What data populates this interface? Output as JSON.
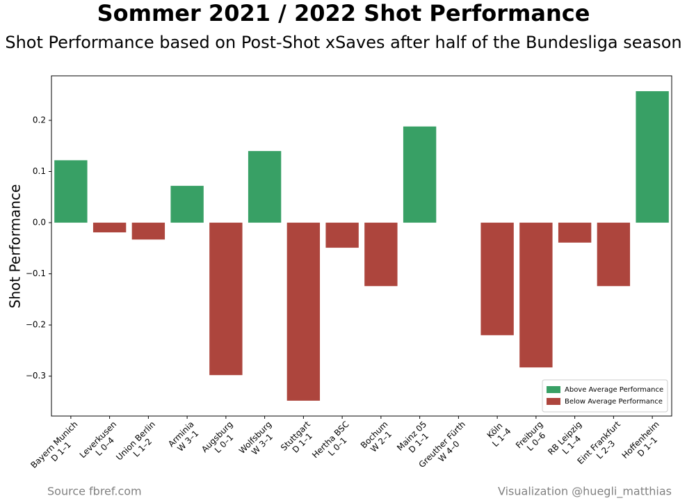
{
  "chart_data": {
    "type": "bar",
    "title": "Sommer 2021 / 2022 Shot Performance",
    "subtitle": "Shot Performance based on Post-Shot xSaves after half of the Bundesliga season",
    "y_label": "Shot Performance",
    "categories": [
      "Bayern Munich",
      "Leverkusen",
      "Union Berlin",
      "Arminia",
      "Augsburg",
      "Wolfsburg",
      "Stuttgart",
      "Hertha BSC",
      "Bochum",
      "Mainz 05",
      "Greuther Fürth",
      "Köln",
      "Freiburg",
      "RB Leipzig",
      "Eint Frankfurt",
      "Hoffenheim"
    ],
    "results": [
      "D 1–1",
      "L 0–4",
      "L 1–2",
      "W 3–1",
      "L 0–1",
      "W 3–1",
      "D 1–1",
      "L 0–1",
      "W 2–1",
      "D 1–1",
      "W 4–0",
      "L 1–4",
      "L 0–6",
      "L 1–4",
      "L 2–3",
      "D 1–1"
    ],
    "series": [
      {
        "name": "Above Average Performance",
        "color": "#38a065",
        "values": [
          0.122,
          null,
          null,
          0.072,
          null,
          0.14,
          null,
          null,
          null,
          0.188,
          null,
          null,
          null,
          null,
          null,
          0.257
        ]
      },
      {
        "name": "Below Average Performance",
        "color": "#ad453d",
        "values": [
          null,
          -0.019,
          -0.033,
          null,
          -0.298,
          null,
          -0.348,
          -0.049,
          -0.124,
          null,
          null,
          -0.22,
          -0.283,
          -0.039,
          -0.124,
          null
        ]
      }
    ],
    "ylim": [
      -0.378,
      0.287
    ],
    "yticks": [
      {
        "value": -0.3,
        "label": "−0.3"
      },
      {
        "value": -0.2,
        "label": "−0.2"
      },
      {
        "value": -0.1,
        "label": "−0.1"
      },
      {
        "value": 0,
        "label": "0.0"
      },
      0.1,
      0.2
    ],
    "legend": "lower right",
    "source": "Source fbref.com",
    "credit": "Visualization @huegli_matthias"
  }
}
